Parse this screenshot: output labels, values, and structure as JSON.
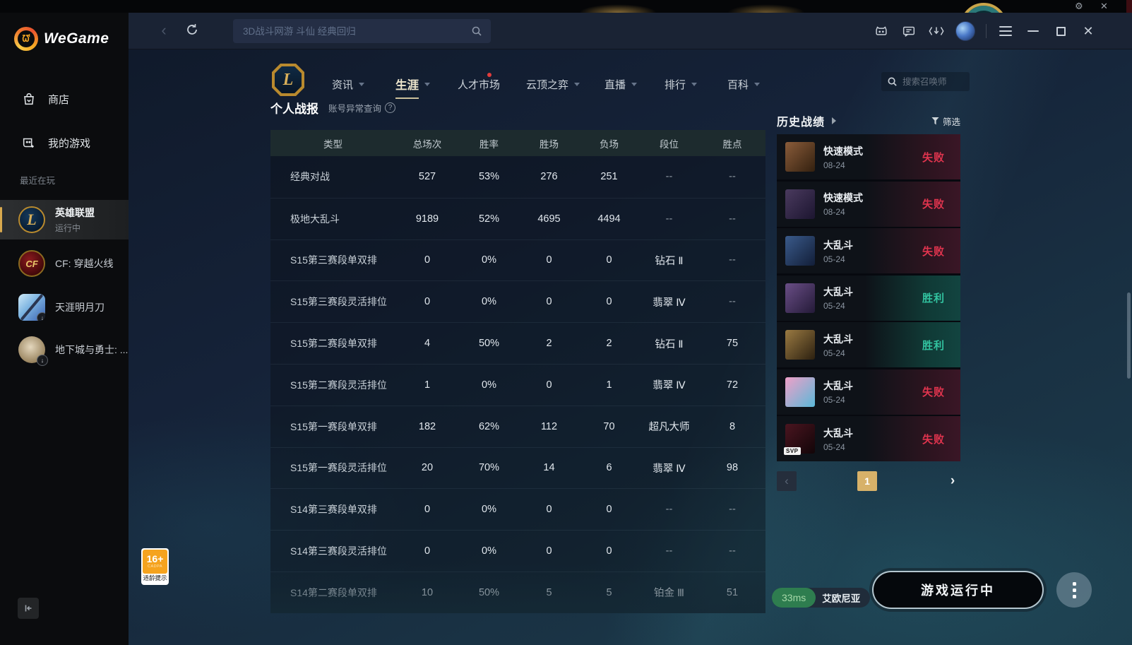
{
  "titlebar": {
    "search_placeholder": "3D战斗网游 斗仙 经典回归",
    "icons": [
      "cat-assistant-icon",
      "chat-icon",
      "download-manager-icon",
      "user-avatar",
      "main-menu-icon",
      "minimize-icon",
      "maximize-icon",
      "close-icon"
    ]
  },
  "background_window": {
    "icons": [
      "gear-icon",
      "close-icon"
    ]
  },
  "sidebar": {
    "logo": "WeGame",
    "items": [
      {
        "label": "商店"
      },
      {
        "label": "我的游戏"
      }
    ],
    "recent_label": "最近在玩",
    "games": [
      {
        "name": "英雄联盟",
        "status": "运行中",
        "active": true
      },
      {
        "name": "CF: 穿越火线",
        "active": false
      },
      {
        "name": "天涯明月刀",
        "active": false,
        "download": true
      },
      {
        "name": "地下城与勇士: ...",
        "active": false,
        "download": true
      }
    ]
  },
  "nav": {
    "tabs": [
      {
        "label": "资讯",
        "caret": true
      },
      {
        "label": "生涯",
        "caret": true,
        "active": true
      },
      {
        "label": "人才市场",
        "dot": true
      },
      {
        "label": "云顶之弈",
        "caret": true
      },
      {
        "label": "直播",
        "caret": true
      },
      {
        "label": "排行",
        "caret": true
      },
      {
        "label": "百科",
        "caret": true
      }
    ],
    "summoner_search_placeholder": "搜索召唤师"
  },
  "report": {
    "title": "个人战报",
    "subtitle": "账号异常查询",
    "help_mark": "?",
    "table": {
      "headers": [
        "类型",
        "总场次",
        "胜率",
        "胜场",
        "负场",
        "段位",
        "胜点"
      ],
      "rows": [
        [
          "经典对战",
          "527",
          "53%",
          "276",
          "251",
          "--",
          "--"
        ],
        [
          "极地大乱斗",
          "9189",
          "52%",
          "4695",
          "4494",
          "--",
          "--"
        ],
        [
          "S15第三赛段单双排",
          "0",
          "0%",
          "0",
          "0",
          "钻石 Ⅱ",
          "--"
        ],
        [
          "S15第三赛段灵活排位",
          "0",
          "0%",
          "0",
          "0",
          "翡翠 Ⅳ",
          "--"
        ],
        [
          "S15第二赛段单双排",
          "4",
          "50%",
          "2",
          "2",
          "钻石 Ⅱ",
          "75"
        ],
        [
          "S15第二赛段灵活排位",
          "1",
          "0%",
          "0",
          "1",
          "翡翠 Ⅳ",
          "72"
        ],
        [
          "S15第一赛段单双排",
          "182",
          "62%",
          "112",
          "70",
          "超凡大师",
          "8"
        ],
        [
          "S15第一赛段灵活排位",
          "20",
          "70%",
          "14",
          "6",
          "翡翠 Ⅳ",
          "98"
        ],
        [
          "S14第三赛段单双排",
          "0",
          "0%",
          "0",
          "0",
          "--",
          "--"
        ],
        [
          "S14第三赛段灵活排位",
          "0",
          "0%",
          "0",
          "0",
          "--",
          "--"
        ],
        [
          "S14第二赛段单双排",
          "10",
          "50%",
          "5",
          "5",
          "铂金 Ⅲ",
          "51"
        ]
      ]
    }
  },
  "history": {
    "title": "历史战绩",
    "filter_label": "筛选",
    "matches": [
      {
        "mode": "快速模式",
        "date": "08-24",
        "result": "失败",
        "win": false,
        "avatar_colors": [
          "#8a5c3a",
          "#33200f"
        ]
      },
      {
        "mode": "快速模式",
        "date": "08-24",
        "result": "失败",
        "win": false,
        "avatar_colors": [
          "#4a3a5e",
          "#1c1530"
        ]
      },
      {
        "mode": "大乱斗",
        "date": "05-24",
        "result": "失败",
        "win": false,
        "avatar_colors": [
          "#3a5a8a",
          "#121e38"
        ]
      },
      {
        "mode": "大乱斗",
        "date": "05-24",
        "result": "胜利",
        "win": true,
        "avatar_colors": [
          "#6a4e86",
          "#241a38"
        ]
      },
      {
        "mode": "大乱斗",
        "date": "05-24",
        "result": "胜利",
        "win": true,
        "avatar_colors": [
          "#9a7a42",
          "#2c2010"
        ]
      },
      {
        "mode": "大乱斗",
        "date": "05-24",
        "result": "失败",
        "win": false,
        "avatar_colors": [
          "#f0a0c8",
          "#5ab8d8"
        ]
      },
      {
        "mode": "大乱斗",
        "date": "05-24",
        "result": "失败",
        "win": false,
        "badge": "SVP",
        "avatar_colors": [
          "#4a1520",
          "#120508"
        ]
      }
    ],
    "page": "1"
  },
  "footer": {
    "ping": "33ms",
    "server": "艾欧尼亚",
    "run_button": "游戏运行中"
  },
  "age_badge": {
    "rating": "16+",
    "org": "CADPA",
    "label": "适龄提示"
  },
  "colors": {
    "accent_gold": "#d9a94e",
    "active_tab": "#ece5cc",
    "loss_red": "#e0344e",
    "win_teal": "#32c3a0",
    "page_gold": "#d7b169",
    "ping_green": "#2e7d4f",
    "table_header_bg": "#1d2b2e"
  }
}
